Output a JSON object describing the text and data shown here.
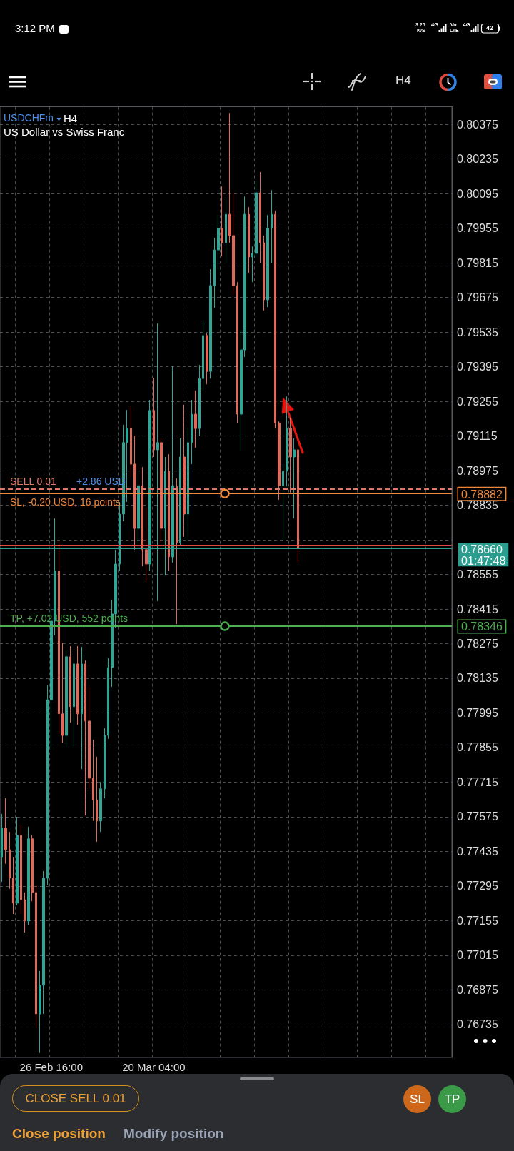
{
  "chart_data": {
    "type": "candlestick",
    "title": "USDCHFm",
    "subtitle": "US Dollar vs Swiss Franc",
    "categories": [
      null,
      null,
      null,
      null,
      null,
      null,
      null,
      null,
      null,
      null,
      null,
      null,
      null,
      "26 Feb 16:00",
      null,
      null,
      null,
      null,
      null,
      null,
      null,
      null,
      null,
      null,
      null,
      null,
      null,
      null,
      null,
      null,
      null,
      null,
      null,
      null,
      null,
      null,
      null,
      null,
      null,
      null,
      "20 Mar 04:00",
      null,
      null,
      null,
      null,
      null,
      null,
      null,
      null,
      null,
      null,
      null,
      null,
      null,
      null,
      null,
      null,
      null,
      null,
      null,
      null,
      null,
      null,
      null,
      null,
      null,
      null,
      null,
      null,
      null,
      null,
      null,
      null,
      null,
      null,
      null,
      null,
      null,
      null,
      null,
      null,
      null,
      null,
      null,
      null,
      null,
      null,
      null,
      null,
      null,
      null,
      null,
      null,
      null,
      null,
      null,
      null,
      null,
      null,
      null,
      null,
      null,
      null,
      null,
      null,
      null,
      null,
      null,
      null,
      null,
      null,
      null,
      null,
      null,
      null,
      null,
      null,
      null,
      null
    ],
    "ohlc": [
      [
        0.77413,
        0.77587,
        0.77312,
        0.77529
      ],
      [
        0.77529,
        0.7765,
        0.77385,
        0.77442
      ],
      [
        0.77442,
        0.77514,
        0.77284,
        0.77327
      ],
      [
        0.77327,
        0.77413,
        0.77182,
        0.77226
      ],
      [
        0.77226,
        0.77575,
        0.77217,
        0.775
      ],
      [
        0.775,
        0.77543,
        0.77182,
        0.7724
      ],
      [
        0.7724,
        0.77269,
        0.77107,
        0.77154
      ],
      [
        0.77154,
        0.77535,
        0.77139,
        0.77486
      ],
      [
        0.77486,
        0.775,
        0.77234,
        0.77269
      ],
      [
        0.77269,
        0.77298,
        0.76721,
        0.76778
      ],
      [
        0.76778,
        0.76952,
        0.7662,
        0.76894
      ],
      [
        0.76894,
        0.77356,
        0.76778,
        0.77327
      ],
      [
        0.77327,
        0.78106,
        0.77298,
        0.78048
      ],
      [
        0.78048,
        0.78424,
        0.77846,
        0.78366
      ],
      [
        0.78366,
        0.78782,
        0.78308,
        0.78568
      ],
      [
        0.78568,
        0.78692,
        0.7791,
        0.77991
      ],
      [
        0.77991,
        0.78279,
        0.77875,
        0.77904
      ],
      [
        0.77904,
        0.7825,
        0.77858,
        0.78222
      ],
      [
        0.78222,
        0.78265,
        0.77956,
        0.7802
      ],
      [
        0.7802,
        0.78222,
        0.77861,
        0.78193
      ],
      [
        0.78193,
        0.78265,
        0.77947,
        0.77991
      ],
      [
        0.77991,
        0.78262,
        0.77768,
        0.78193
      ],
      [
        0.78193,
        0.78207,
        0.77581,
        0.77962
      ],
      [
        0.77962,
        0.781,
        0.77688,
        0.77731
      ],
      [
        0.77731,
        0.77887,
        0.77558,
        0.77644
      ],
      [
        0.77644,
        0.77818,
        0.77474,
        0.77558
      ],
      [
        0.77558,
        0.77716,
        0.77514,
        0.77688
      ],
      [
        0.77688,
        0.77933,
        0.7765,
        0.77904
      ],
      [
        0.77904,
        0.78216,
        0.7789,
        0.78178
      ],
      [
        0.78178,
        0.78453,
        0.781,
        0.78395
      ],
      [
        0.78395,
        0.78655,
        0.78337,
        0.78597
      ],
      [
        0.78597,
        0.78848,
        0.78568,
        0.78799
      ],
      [
        0.78799,
        0.7916,
        0.7877,
        0.79088
      ],
      [
        0.79088,
        0.7922,
        0.78848,
        0.79145
      ],
      [
        0.79145,
        0.79235,
        0.78949,
        0.79001
      ],
      [
        0.79001,
        0.79116,
        0.78655,
        0.78741
      ],
      [
        0.78741,
        0.78975,
        0.78681,
        0.78914
      ],
      [
        0.78914,
        0.78989,
        0.78588,
        0.78655
      ],
      [
        0.78655,
        0.78822,
        0.78525,
        0.78597
      ],
      [
        0.78597,
        0.79261,
        0.78568,
        0.79218
      ],
      [
        0.79218,
        0.7935,
        0.7903,
        0.79059
      ],
      [
        0.79059,
        0.7957,
        0.78447,
        0.79088
      ],
      [
        0.79088,
        0.79105,
        0.78684,
        0.78741
      ],
      [
        0.78741,
        0.7903,
        0.78551,
        0.78972
      ],
      [
        0.78972,
        0.79041,
        0.78568,
        0.78626
      ],
      [
        0.78626,
        0.79396,
        0.78603,
        0.78914
      ],
      [
        0.78914,
        0.78943,
        0.78354,
        0.78684
      ],
      [
        0.78684,
        0.79105,
        0.78669,
        0.7903
      ],
      [
        0.7903,
        0.79241,
        0.78707,
        0.78799
      ],
      [
        0.78799,
        0.79145,
        0.78692,
        0.79088
      ],
      [
        0.79088,
        0.79261,
        0.79001,
        0.79203
      ],
      [
        0.79203,
        0.79298,
        0.79067,
        0.79145
      ],
      [
        0.79145,
        0.79402,
        0.79116,
        0.79347
      ],
      [
        0.79347,
        0.79581,
        0.79304,
        0.79521
      ],
      [
        0.79521,
        0.79529,
        0.79324,
        0.79376
      ],
      [
        0.79376,
        0.79789,
        0.79347,
        0.79723
      ],
      [
        0.79723,
        0.79916,
        0.79633,
        0.79867
      ],
      [
        0.79867,
        0.80008,
        0.79789,
        0.79954
      ],
      [
        0.79954,
        0.80124,
        0.79841,
        0.79896
      ],
      [
        0.79896,
        0.80072,
        0.79815,
        0.80011
      ],
      [
        0.80011,
        0.80421,
        0.79896,
        0.79925
      ],
      [
        0.79925,
        0.80098,
        0.79685,
        0.79723
      ],
      [
        0.79723,
        0.79737,
        0.79168,
        0.79203
      ],
      [
        0.79203,
        0.79544,
        0.79053,
        0.79463
      ],
      [
        0.79463,
        0.80083,
        0.79434,
        0.80011
      ],
      [
        0.80011,
        0.8004,
        0.79775,
        0.79838
      ],
      [
        0.79838,
        0.79881,
        0.79737,
        0.79853
      ],
      [
        0.79853,
        0.80144,
        0.79838,
        0.80098
      ],
      [
        0.80098,
        0.80182,
        0.79815,
        0.79896
      ],
      [
        0.79896,
        0.79925,
        0.79622,
        0.79665
      ],
      [
        0.79665,
        0.80008,
        0.79636,
        0.79954
      ],
      [
        0.79954,
        0.80109,
        0.79815,
        0.80011
      ],
      [
        0.80011,
        0.80026,
        0.79145,
        0.79168
      ],
      [
        0.79168,
        0.79174,
        0.78857,
        0.78914
      ],
      [
        0.78914,
        0.79001,
        0.78695,
        0.78972
      ],
      [
        0.78972,
        0.79275,
        0.78911,
        0.79145
      ],
      [
        0.79145,
        0.79189,
        0.78886,
        0.7903
      ],
      [
        0.7903,
        0.79105,
        0.78782,
        0.79059
      ],
      [
        0.79059,
        0.79064,
        0.78603,
        0.7866
      ],
      null,
      null,
      null,
      null,
      null,
      null,
      null,
      null,
      null,
      null,
      null,
      null,
      null,
      null,
      null,
      null,
      null,
      null,
      null,
      null,
      null,
      null,
      null,
      null,
      null,
      null,
      null,
      null,
      null,
      null,
      null,
      null,
      null,
      null,
      null,
      null,
      null,
      null,
      null,
      null
    ],
    "colors": [
      "#2fa596",
      "#e0695a",
      "#e0695a",
      "#e0695a",
      "#2fa596",
      "#e0695a",
      "#e0695a",
      "#2fa596",
      "#e0695a",
      "#e0695a",
      "#2fa596",
      "#2fa596",
      "#2fa596",
      "#2fa596",
      "#2fa596",
      "#e0695a",
      "#e0695a",
      "#2fa596",
      "#e0695a",
      "#2fa596",
      "#e0695a",
      "#2fa596",
      "#e0695a",
      "#e0695a",
      "#e0695a",
      "#e0695a",
      "#2fa596",
      "#2fa596",
      "#2fa596",
      "#2fa596",
      "#2fa596",
      "#2fa596",
      "#2fa596",
      "#2fa596",
      "#e0695a",
      "#e0695a",
      "#2fa596",
      "#e0695a",
      "#e0695a",
      "#2fa596",
      "#e0695a",
      "#2fa596",
      "#e0695a",
      "#2fa596",
      "#e0695a",
      "#2fa596",
      "#e0695a",
      "#2fa596",
      "#e0695a",
      "#2fa596",
      "#2fa596",
      "#e0695a",
      "#2fa596",
      "#2fa596",
      "#e0695a",
      "#2fa596",
      "#2fa596",
      "#2fa596",
      "#e0695a",
      "#2fa596",
      "#e0695a",
      "#e0695a",
      "#e0695a",
      "#2fa596",
      "#2fa596",
      "#e0695a",
      "#2fa596",
      "#2fa596",
      "#e0695a",
      "#e0695a",
      "#2fa596",
      "#2fa596",
      "#e0695a",
      "#e0695a",
      "#2fa596",
      "#2fa596",
      "#e0695a",
      "#2fa596",
      "#e0695a",
      null,
      null,
      null,
      null,
      null,
      null,
      null,
      null,
      null,
      null,
      null,
      null,
      null,
      null,
      null,
      null,
      null,
      null,
      null,
      null,
      null,
      null,
      null,
      null,
      null,
      null,
      null,
      null,
      null,
      null,
      null,
      null,
      null,
      null,
      null,
      null,
      null,
      null,
      null,
      null
    ],
    "ylim": [
      0.76602,
      0.80446
    ],
    "yticks": [
      0.76735,
      0.76875,
      0.77015,
      0.77155,
      0.77295,
      0.77435,
      0.77575,
      0.77715,
      0.77855,
      0.77995,
      0.78135,
      0.78275,
      0.78415,
      0.78555,
      {
        "value": 0.78695,
        "label": null
      },
      0.78835,
      0.78975,
      0.79115,
      0.79255,
      0.79395,
      0.79535,
      0.79675,
      0.79815,
      0.79955,
      0.80095,
      0.80235,
      0.80375
    ],
    "grid": true,
    "ref_lines": [
      {
        "axis": "y",
        "value": 0.78901,
        "label": "SELL 0.01",
        "color": "#e07868",
        "line_style": "dashed"
      },
      {
        "axis": "y",
        "value": 0.78882,
        "label": "SL, -0.20 USD, 16 points",
        "color": "#f0883a"
      },
      {
        "axis": "y",
        "value": 0.78346,
        "label": "TP, +7.02 USD, 552 points",
        "color": "#4caf50"
      },
      {
        "axis": "y",
        "value": 0.78673,
        "color": "#e04848"
      },
      {
        "axis": "y",
        "value": 0.7866,
        "color": "#2a9d8f"
      }
    ],
    "annotations": [
      {
        "text": "+2.86 USD",
        "y": 0.78901
      },
      "0.78882",
      "0.78346",
      "0.78660",
      "01:47:48",
      "H4",
      "3:12 PM",
      "3.25",
      "K/S",
      "4G",
      "Vo",
      "LTE",
      "4G",
      "42",
      "H4",
      "CLOSE SELL 0.01",
      "SL",
      "TP",
      "Close position",
      "Modify position"
    ]
  }
}
